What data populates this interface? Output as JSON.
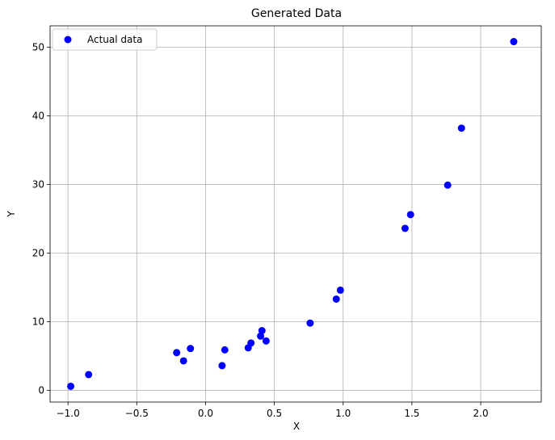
{
  "chart_data": {
    "type": "scatter",
    "title": "Generated Data",
    "xlabel": "X",
    "ylabel": "Y",
    "xlim": [
      -1.13,
      2.44
    ],
    "ylim": [
      -1.7,
      53.1
    ],
    "xticks": [
      -1.0,
      -0.5,
      0.0,
      0.5,
      1.0,
      1.5,
      2.0
    ],
    "xtick_labels": [
      "−1.0",
      "−0.5",
      "0.0",
      "0.5",
      "1.0",
      "1.5",
      "2.0"
    ],
    "yticks": [
      0,
      10,
      20,
      30,
      40,
      50
    ],
    "ytick_labels": [
      "0",
      "10",
      "20",
      "30",
      "40",
      "50"
    ],
    "grid": true,
    "legend_position": "top-left",
    "series": [
      {
        "name": "Actual data",
        "color": "#0000ff",
        "marker": "circle",
        "x": [
          -0.98,
          -0.85,
          -0.21,
          -0.16,
          -0.11,
          0.12,
          0.14,
          0.31,
          0.33,
          0.4,
          0.41,
          0.44,
          0.76,
          0.95,
          0.98,
          1.45,
          1.49,
          1.76,
          1.86,
          2.24
        ],
        "y": [
          0.6,
          2.3,
          5.5,
          4.3,
          6.1,
          3.6,
          5.9,
          6.2,
          6.9,
          7.9,
          8.7,
          7.2,
          9.8,
          13.3,
          14.6,
          23.6,
          25.6,
          29.9,
          38.2,
          50.8
        ]
      }
    ]
  }
}
